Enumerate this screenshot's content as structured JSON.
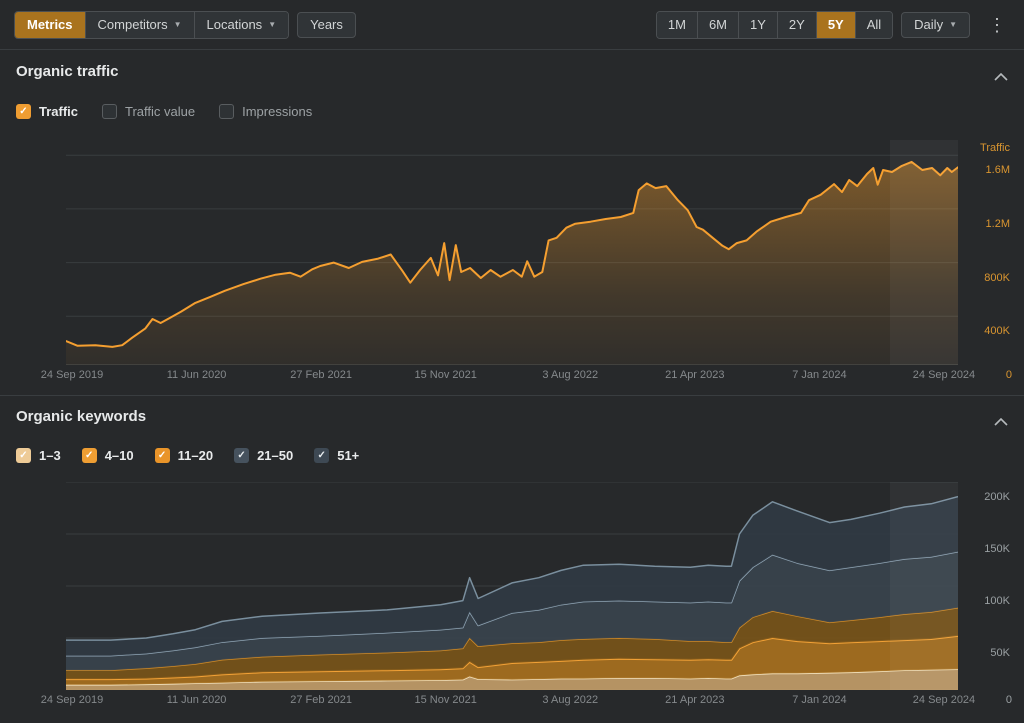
{
  "colors": {
    "background": "#27292b",
    "divider": "#393d40",
    "accent_orange": "#a9731e",
    "line_orange": "#f59f30",
    "axis_orange": "#d99530",
    "text_bright": "#e8eaeb",
    "text_muted": "#9da2a5",
    "text_faint": "#85898c",
    "grid": "#393d3f"
  },
  "toolbar": {
    "metric_tabs": [
      {
        "label": "Metrics",
        "active": true
      },
      {
        "label": "Competitors",
        "has_caret": true
      },
      {
        "label": "Locations",
        "has_caret": true
      },
      {
        "label": "Years"
      }
    ],
    "ranges": [
      {
        "label": "1M"
      },
      {
        "label": "6M"
      },
      {
        "label": "1Y"
      },
      {
        "label": "2Y"
      },
      {
        "label": "5Y",
        "active": true
      },
      {
        "label": "All"
      }
    ],
    "granularity": {
      "label": "Daily",
      "has_caret": true
    },
    "menu_icon": "kebab-menu"
  },
  "sections": [
    {
      "title": "Organic traffic",
      "legend": [
        {
          "label": "Traffic",
          "checked": true,
          "color": "#ef9d32"
        },
        {
          "label": "Traffic value",
          "checked": false
        },
        {
          "label": "Impressions",
          "checked": false
        }
      ]
    },
    {
      "title": "Organic keywords",
      "legend": [
        {
          "label": "1–3",
          "checked": true,
          "color": "#eecb97"
        },
        {
          "label": "4–10",
          "checked": true,
          "color": "#ef9e33"
        },
        {
          "label": "11–20",
          "checked": true,
          "color": "#e99429"
        },
        {
          "label": "21–50",
          "checked": true,
          "color": "#46525e",
          "dark": true
        },
        {
          "label": "51+",
          "checked": true,
          "color": "#3e4954",
          "dark": true
        }
      ]
    }
  ],
  "chart_data": [
    {
      "type": "area",
      "title": "Organic traffic",
      "y_axis_title": "Traffic",
      "unit": "thousands",
      "ylim": [
        0,
        1675
      ],
      "grid": true,
      "legend_position": "none",
      "x_tick_labels": [
        "24 Sep 2019",
        "11 Jun 2020",
        "27 Feb 2021",
        "15 Nov 2021",
        "3 Aug 2022",
        "21 Apr 2023",
        "7 Jan 2024",
        "24 Sep 2024"
      ],
      "y_ticks": [
        {
          "value": 1600,
          "label": "1.6M"
        },
        {
          "value": 1200,
          "label": "1.2M"
        },
        {
          "value": 800,
          "label": "800K"
        },
        {
          "value": 400,
          "label": "400K"
        },
        {
          "value": 0,
          "label": "0"
        }
      ],
      "line_color": "#f59f30",
      "x": [
        0,
        0.013,
        0.033,
        0.052,
        0.063,
        0.074,
        0.089,
        0.097,
        0.106,
        0.117,
        0.129,
        0.145,
        0.162,
        0.178,
        0.199,
        0.218,
        0.235,
        0.251,
        0.263,
        0.276,
        0.285,
        0.3,
        0.317,
        0.332,
        0.35,
        0.364,
        0.377,
        0.386,
        0.397,
        0.409,
        0.417,
        0.424,
        0.43,
        0.437,
        0.443,
        0.453,
        0.465,
        0.476,
        0.487,
        0.501,
        0.511,
        0.517,
        0.525,
        0.534,
        0.541,
        0.55,
        0.561,
        0.571,
        0.588,
        0.605,
        0.622,
        0.636,
        0.642,
        0.651,
        0.661,
        0.673,
        0.686,
        0.697,
        0.707,
        0.714,
        0.725,
        0.736,
        0.743,
        0.752,
        0.763,
        0.774,
        0.79,
        0.807,
        0.824,
        0.833,
        0.846,
        0.861,
        0.87,
        0.878,
        0.887,
        0.898,
        0.905,
        0.91,
        0.916,
        0.926,
        0.937,
        0.948,
        0.96,
        0.971,
        0.98,
        0.988,
        0.993,
        1.0
      ],
      "values": [
        215,
        180,
        185,
        172,
        185,
        240,
        310,
        380,
        350,
        390,
        435,
        500,
        545,
        590,
        640,
        680,
        710,
        725,
        695,
        750,
        775,
        800,
        760,
        805,
        830,
        860,
        740,
        650,
        745,
        835,
        705,
        945,
        670,
        930,
        730,
        760,
        685,
        745,
        695,
        745,
        695,
        810,
        695,
        730,
        965,
        985,
        1060,
        1090,
        1105,
        1125,
        1140,
        1170,
        1340,
        1390,
        1355,
        1370,
        1265,
        1190,
        1065,
        1045,
        985,
        925,
        900,
        945,
        965,
        1030,
        1105,
        1140,
        1170,
        1265,
        1305,
        1385,
        1325,
        1415,
        1370,
        1460,
        1505,
        1380,
        1490,
        1475,
        1520,
        1550,
        1490,
        1505,
        1450,
        1505,
        1475,
        1510
      ]
    },
    {
      "type": "stacked-area",
      "title": "Organic keywords",
      "unit": "thousands",
      "ylim": [
        0,
        210
      ],
      "grid": true,
      "legend_position": "top-left",
      "x_tick_labels": [
        "24 Sep 2019",
        "11 Jun 2020",
        "27 Feb 2021",
        "15 Nov 2021",
        "3 Aug 2022",
        "21 Apr 2023",
        "7 Jan 2024",
        "24 Sep 2024"
      ],
      "y_ticks": [
        {
          "value": 200,
          "label": "200K"
        },
        {
          "value": 150,
          "label": "150K"
        },
        {
          "value": 100,
          "label": "100K"
        },
        {
          "value": 50,
          "label": "50K"
        },
        {
          "value": 0,
          "label": "0"
        }
      ],
      "x": [
        0,
        0.05,
        0.09,
        0.12,
        0.145,
        0.175,
        0.22,
        0.285,
        0.36,
        0.42,
        0.445,
        0.4525,
        0.462,
        0.5,
        0.53,
        0.555,
        0.58,
        0.62,
        0.66,
        0.7,
        0.72,
        0.74,
        0.746,
        0.755,
        0.77,
        0.792,
        0.82,
        0.856,
        0.88,
        0.912,
        0.94,
        0.97,
        1.0
      ],
      "series": [
        {
          "name": "1–3",
          "fill": "rgba(197,158,105,0.9)",
          "line": "#f3e2bd",
          "values": [
            5,
            5,
            5.5,
            6,
            6.5,
            7,
            8,
            8.5,
            9,
            9.5,
            10,
            13,
            10.5,
            10,
            10.5,
            11,
            11,
            11.5,
            11.5,
            11,
            11.5,
            11,
            11,
            14,
            15,
            16,
            16,
            16.5,
            17,
            18,
            19,
            19.5,
            20
          ]
        },
        {
          "name": "4–10",
          "fill": "rgba(167,112,30,0.92)",
          "line": "#f2a136",
          "values": [
            5.5,
            5.5,
            5.5,
            6,
            6.5,
            8,
            9,
            9.5,
            10,
            10.5,
            11,
            14,
            11.5,
            16,
            16.5,
            17,
            18,
            18.5,
            18,
            18,
            18,
            18,
            18,
            26,
            31,
            34,
            31,
            28.5,
            29,
            29,
            29,
            29.5,
            32
          ]
        },
        {
          "name": "11–20",
          "fill": "rgba(122,84,24,0.9)",
          "line": "#d28b26",
          "values": [
            8.5,
            8.5,
            10,
            11,
            12,
            14,
            15,
            16,
            17,
            18,
            19,
            23,
            20,
            19,
            19,
            20,
            20,
            20,
            19.5,
            18,
            17.5,
            17,
            17,
            20,
            24,
            26,
            24,
            20,
            21,
            23,
            25,
            26,
            27
          ]
        },
        {
          "name": "21–50",
          "fill": "rgba(56,67,77,0.92)",
          "line": "#90a5b5",
          "values": [
            14,
            14,
            14,
            15,
            16,
            17,
            18,
            18,
            19,
            20,
            20,
            25,
            20,
            29,
            31,
            34,
            36,
            36,
            36,
            37,
            38,
            38,
            38,
            45,
            48,
            54,
            51,
            50,
            51,
            52,
            53,
            53,
            54
          ]
        },
        {
          "name": "51+",
          "fill": "rgba(48,58,67,0.92)",
          "line": "#7a8f9e",
          "values": [
            15,
            15,
            15,
            16,
            17,
            20,
            21,
            22,
            22,
            24,
            26,
            33,
            26,
            29,
            31,
            33,
            35,
            35,
            34,
            34,
            35,
            35,
            35,
            45,
            50,
            51,
            50,
            46,
            46,
            48,
            50,
            51,
            53
          ]
        }
      ]
    }
  ]
}
